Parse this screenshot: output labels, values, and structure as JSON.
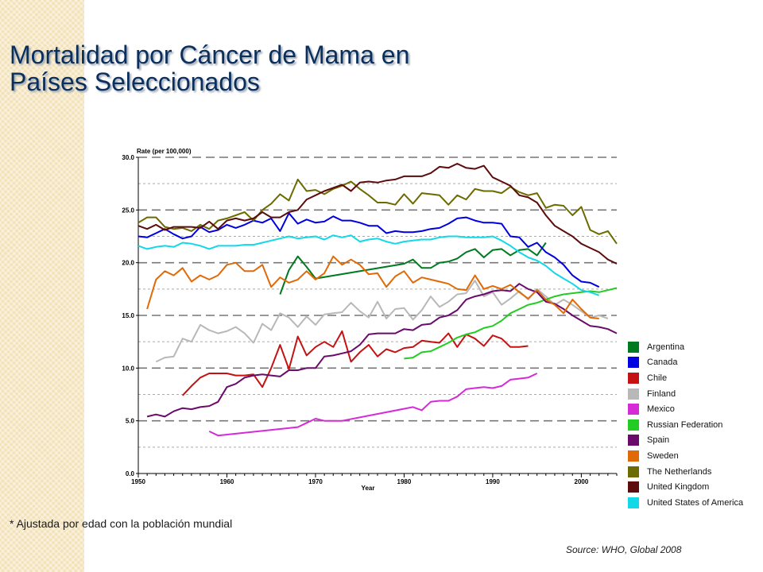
{
  "slide": {
    "title_line1": "Mortalidad por Cáncer de Mama en",
    "title_line2": "Países Seleccionados",
    "footnote": "* Ajustada por edad con la población mundial",
    "source": "Source: WHO, Global 2008"
  },
  "chart_data": {
    "type": "line",
    "title": "",
    "ylabel": "Rate (per 100,000)",
    "xlabel": "Year",
    "xlim": [
      1950,
      2004
    ],
    "ylim": [
      0,
      30
    ],
    "x_ticks": [
      "1950",
      "1960",
      "1970",
      "1980",
      "1990",
      "2000"
    ],
    "y_ticks": [
      "0.0",
      "5.0",
      "10.0",
      "15.0",
      "20.0",
      "25.0",
      "30.0"
    ],
    "grid": "dashed horizontal",
    "legend_position": "right",
    "series": [
      {
        "name": "Argentina",
        "color": "#007a1e",
        "x": [
          1966,
          1967,
          1968,
          1969,
          1970,
          1980,
          1981,
          1982,
          1983,
          1984,
          1985,
          1986,
          1987,
          1988,
          1989,
          1990,
          1991,
          1992,
          1993,
          1994,
          1995,
          1996
        ],
        "y": [
          17.0,
          19.3,
          20.6,
          19.6,
          18.5,
          19.9,
          20.3,
          19.5,
          19.5,
          20.0,
          20.1,
          20.4,
          21.0,
          21.3,
          20.5,
          21.2,
          21.3,
          20.7,
          21.2,
          21.3,
          20.7,
          21.9
        ]
      },
      {
        "name": "Canada",
        "color": "#0000e0",
        "x": [
          1950,
          1951,
          1952,
          1953,
          1954,
          1955,
          1956,
          1957,
          1958,
          1959,
          1960,
          1961,
          1962,
          1963,
          1964,
          1965,
          1966,
          1967,
          1968,
          1969,
          1970,
          1971,
          1972,
          1973,
          1974,
          1975,
          1976,
          1977,
          1978,
          1979,
          1980,
          1981,
          1982,
          1983,
          1984,
          1985,
          1986,
          1987,
          1988,
          1989,
          1990,
          1991,
          1992,
          1993,
          1994,
          1995,
          1996,
          1997,
          1998,
          1999,
          2000,
          2001,
          2002
        ],
        "y": [
          22.5,
          22.4,
          22.8,
          23.2,
          22.7,
          22.3,
          22.5,
          23.4,
          22.9,
          23.1,
          23.6,
          23.3,
          23.6,
          24.0,
          23.8,
          24.2,
          23.0,
          24.7,
          23.7,
          24.1,
          23.8,
          23.9,
          24.4,
          24.0,
          24.0,
          23.8,
          23.5,
          23.5,
          22.8,
          23.0,
          22.9,
          22.9,
          23.0,
          23.2,
          23.3,
          23.7,
          24.2,
          24.3,
          24.0,
          23.8,
          23.8,
          23.7,
          22.5,
          22.4,
          21.5,
          21.9,
          21.0,
          20.5,
          19.8,
          18.8,
          18.2,
          18.1,
          17.7
        ]
      },
      {
        "name": "Chile",
        "color": "#c41212",
        "x": [
          1955,
          1956,
          1957,
          1958,
          1959,
          1960,
          1961,
          1962,
          1963,
          1964,
          1965,
          1966,
          1967,
          1968,
          1969,
          1970,
          1971,
          1972,
          1973,
          1974,
          1975,
          1976,
          1977,
          1978,
          1979,
          1980,
          1981,
          1982,
          1983,
          1984,
          1985,
          1986,
          1987,
          1988,
          1989,
          1990,
          1991,
          1992,
          1993,
          1994
        ],
        "y": [
          7.4,
          8.3,
          9.1,
          9.5,
          9.5,
          9.5,
          9.3,
          9.3,
          9.4,
          8.2,
          10.0,
          12.2,
          9.9,
          13.0,
          11.2,
          12.0,
          12.5,
          12.0,
          13.5,
          10.6,
          11.5,
          12.2,
          11.1,
          11.8,
          11.5,
          11.9,
          12.0,
          12.6,
          12.5,
          12.4,
          13.3,
          12.0,
          13.2,
          12.8,
          12.1,
          13.1,
          12.8,
          12.0,
          12.0,
          12.1
        ]
      },
      {
        "name": "Finland",
        "color": "#b8b8b8",
        "x": [
          1952,
          1953,
          1954,
          1955,
          1956,
          1957,
          1958,
          1959,
          1960,
          1961,
          1962,
          1963,
          1964,
          1965,
          1966,
          1967,
          1968,
          1969,
          1970,
          1971,
          1972,
          1973,
          1974,
          1975,
          1976,
          1977,
          1978,
          1979,
          1980,
          1981,
          1982,
          1983,
          1984,
          1985,
          1986,
          1987,
          1988,
          1989,
          1990,
          1991,
          1992,
          1993,
          1994,
          1995,
          1996,
          1997,
          1998,
          1999,
          2000,
          2001,
          2002,
          2003
        ],
        "y": [
          10.6,
          11.0,
          11.1,
          12.8,
          12.5,
          14.1,
          13.6,
          13.3,
          13.5,
          13.9,
          13.3,
          12.4,
          14.2,
          13.6,
          15.2,
          14.8,
          13.9,
          14.9,
          14.1,
          15.1,
          15.2,
          15.3,
          16.2,
          15.4,
          14.8,
          16.3,
          14.7,
          15.6,
          15.7,
          14.6,
          15.5,
          16.8,
          15.8,
          16.3,
          17.0,
          17.1,
          18.3,
          16.8,
          17.2,
          16.0,
          16.6,
          17.3,
          16.5,
          17.5,
          16.8,
          16.0,
          16.5,
          16.0,
          15.4,
          14.8,
          15.0,
          14.7
        ]
      },
      {
        "name": "Mexico",
        "color": "#d62ad6",
        "x": [
          1958,
          1959,
          1968,
          1969,
          1970,
          1971,
          1972,
          1973,
          1981,
          1982,
          1983,
          1984,
          1985,
          1986,
          1987,
          1988,
          1989,
          1990,
          1991,
          1992,
          1993,
          1994,
          1995
        ],
        "y": [
          4.0,
          3.6,
          4.4,
          4.8,
          5.2,
          5.0,
          5.0,
          5.0,
          6.3,
          6.0,
          6.8,
          6.9,
          6.9,
          7.3,
          8.0,
          8.1,
          8.2,
          8.1,
          8.3,
          8.9,
          9.0,
          9.1,
          9.5
        ]
      },
      {
        "name": "Russian Federation",
        "color": "#22cc22",
        "x": [
          1980,
          1981,
          1982,
          1983,
          1984,
          1985,
          1986,
          1987,
          1988,
          1989,
          1990,
          1991,
          1992,
          1993,
          1994,
          1995,
          1996,
          1997,
          1998,
          1999,
          2000,
          2001,
          2002,
          2003,
          2004
        ],
        "y": [
          10.9,
          11.0,
          11.5,
          11.6,
          12.0,
          12.4,
          12.9,
          13.2,
          13.4,
          13.8,
          14.0,
          14.5,
          15.2,
          15.6,
          16.0,
          16.2,
          16.5,
          16.8,
          17.0,
          17.1,
          17.2,
          17.3,
          17.2,
          17.4,
          17.6
        ]
      },
      {
        "name": "Spain",
        "color": "#6a0a6a",
        "x": [
          1951,
          1952,
          1953,
          1954,
          1955,
          1956,
          1957,
          1958,
          1959,
          1960,
          1961,
          1962,
          1963,
          1964,
          1965,
          1966,
          1967,
          1968,
          1969,
          1970,
          1971,
          1972,
          1973,
          1974,
          1975,
          1976,
          1977,
          1978,
          1979,
          1980,
          1981,
          1982,
          1983,
          1984,
          1985,
          1986,
          1987,
          1988,
          1989,
          1990,
          1991,
          1992,
          1993,
          1994,
          1995,
          1996,
          1997,
          1998,
          1999,
          2000,
          2001,
          2002,
          2003,
          2004
        ],
        "y": [
          5.4,
          5.6,
          5.4,
          5.9,
          6.2,
          6.1,
          6.3,
          6.4,
          6.8,
          8.2,
          8.5,
          9.1,
          9.3,
          9.4,
          9.3,
          9.2,
          9.8,
          9.8,
          10.0,
          10.0,
          11.1,
          11.2,
          11.4,
          11.6,
          12.2,
          13.2,
          13.3,
          13.3,
          13.3,
          13.7,
          13.6,
          14.1,
          14.2,
          14.8,
          15.0,
          15.5,
          16.5,
          16.8,
          17.0,
          17.3,
          17.4,
          17.3,
          18.0,
          17.5,
          17.2,
          16.3,
          16.1,
          15.6,
          15.0,
          14.5,
          14.0,
          13.9,
          13.7,
          13.3
        ]
      },
      {
        "name": "Sweden",
        "color": "#e06a08",
        "x": [
          1951,
          1952,
          1953,
          1954,
          1955,
          1956,
          1957,
          1958,
          1959,
          1960,
          1961,
          1962,
          1963,
          1964,
          1965,
          1966,
          1967,
          1968,
          1969,
          1970,
          1971,
          1972,
          1973,
          1974,
          1975,
          1976,
          1977,
          1978,
          1979,
          1980,
          1981,
          1982,
          1983,
          1984,
          1985,
          1986,
          1987,
          1988,
          1989,
          1990,
          1991,
          1992,
          1993,
          1994,
          1995,
          1996,
          1997,
          1998,
          1999,
          2000,
          2001,
          2002
        ],
        "y": [
          15.6,
          18.4,
          19.2,
          18.8,
          19.5,
          18.2,
          18.8,
          18.4,
          18.8,
          19.8,
          20.0,
          19.2,
          19.2,
          19.8,
          17.7,
          18.6,
          18.1,
          18.4,
          19.2,
          18.4,
          19.0,
          20.6,
          19.8,
          20.3,
          19.8,
          18.9,
          19.0,
          17.7,
          18.7,
          19.2,
          18.1,
          18.6,
          18.4,
          18.2,
          18.0,
          17.5,
          17.4,
          18.8,
          17.5,
          17.8,
          17.5,
          17.9,
          17.2,
          16.6,
          17.4,
          16.5,
          16.0,
          15.2,
          16.5,
          15.6,
          14.8,
          14.7
        ]
      },
      {
        "name": "The Netherlands",
        "color": "#6b6b00",
        "x": [
          1950,
          1951,
          1952,
          1953,
          1954,
          1955,
          1956,
          1957,
          1958,
          1959,
          1960,
          1961,
          1962,
          1963,
          1964,
          1965,
          1966,
          1967,
          1968,
          1969,
          1970,
          1971,
          1972,
          1973,
          1974,
          1975,
          1976,
          1977,
          1978,
          1979,
          1980,
          1981,
          1982,
          1983,
          1984,
          1985,
          1986,
          1987,
          1988,
          1989,
          1990,
          1991,
          1992,
          1993,
          1994,
          1995,
          1996,
          1997,
          1998,
          1999,
          2000,
          2001,
          2002,
          2003,
          2004
        ],
        "y": [
          23.8,
          24.3,
          24.3,
          23.4,
          23.2,
          23.3,
          23.0,
          23.6,
          23.2,
          24.0,
          24.2,
          24.5,
          24.8,
          24.0,
          25.0,
          25.6,
          26.5,
          25.9,
          27.9,
          26.8,
          26.9,
          26.5,
          27.0,
          27.3,
          27.7,
          27.0,
          26.4,
          25.7,
          25.7,
          25.5,
          26.5,
          25.6,
          26.6,
          26.5,
          26.4,
          25.5,
          26.4,
          26.0,
          27.0,
          26.8,
          26.8,
          26.6,
          27.2,
          26.7,
          26.4,
          26.6,
          25.2,
          25.5,
          25.4,
          24.5,
          25.3,
          23.1,
          22.7,
          23.0,
          21.8
        ]
      },
      {
        "name": "United Kingdom",
        "color": "#5c0c0c",
        "x": [
          1950,
          1951,
          1952,
          1953,
          1954,
          1955,
          1956,
          1957,
          1958,
          1959,
          1960,
          1961,
          1962,
          1963,
          1964,
          1965,
          1966,
          1967,
          1968,
          1969,
          1970,
          1971,
          1972,
          1973,
          1974,
          1975,
          1976,
          1977,
          1978,
          1979,
          1980,
          1981,
          1982,
          1983,
          1984,
          1985,
          1986,
          1987,
          1988,
          1989,
          1990,
          1991,
          1992,
          1993,
          1994,
          1995,
          1996,
          1997,
          1998,
          1999,
          2000,
          2001,
          2002,
          2003,
          2004
        ],
        "y": [
          23.5,
          23.2,
          23.6,
          23.1,
          23.4,
          23.4,
          23.4,
          23.3,
          23.9,
          23.2,
          24.0,
          24.2,
          24.0,
          24.2,
          24.8,
          24.3,
          24.3,
          24.8,
          25.0,
          26.0,
          26.4,
          26.8,
          27.1,
          27.4,
          26.8,
          27.6,
          27.7,
          27.6,
          27.8,
          27.9,
          28.2,
          28.2,
          28.2,
          28.5,
          29.1,
          29.0,
          29.4,
          29.0,
          28.9,
          29.2,
          28.1,
          27.7,
          27.3,
          26.4,
          26.2,
          25.7,
          24.5,
          23.5,
          23.0,
          22.5,
          21.8,
          21.4,
          21.0,
          20.3,
          19.9
        ]
      },
      {
        "name": "United States of America",
        "color": "#12d8e8",
        "x": [
          1950,
          1951,
          1952,
          1953,
          1954,
          1955,
          1956,
          1957,
          1958,
          1959,
          1960,
          1961,
          1962,
          1963,
          1964,
          1965,
          1966,
          1967,
          1968,
          1969,
          1970,
          1971,
          1972,
          1973,
          1974,
          1975,
          1976,
          1977,
          1978,
          1979,
          1980,
          1981,
          1982,
          1983,
          1984,
          1985,
          1986,
          1987,
          1988,
          1989,
          1990,
          1991,
          1992,
          1993,
          1994,
          1995,
          1996,
          1997,
          1998,
          1999,
          2000,
          2001,
          2002
        ],
        "y": [
          21.6,
          21.3,
          21.5,
          21.6,
          21.5,
          21.9,
          21.8,
          21.6,
          21.3,
          21.6,
          21.6,
          21.6,
          21.7,
          21.7,
          21.9,
          22.1,
          22.3,
          22.5,
          22.3,
          22.4,
          22.5,
          22.2,
          22.6,
          22.4,
          22.6,
          22.0,
          22.2,
          22.3,
          22.0,
          21.8,
          22.0,
          22.1,
          22.2,
          22.2,
          22.4,
          22.5,
          22.5,
          22.4,
          22.4,
          22.4,
          22.5,
          22.1,
          21.6,
          21.0,
          20.5,
          20.2,
          19.7,
          19.0,
          18.5,
          18.0,
          17.4,
          17.2,
          16.9
        ]
      }
    ]
  }
}
